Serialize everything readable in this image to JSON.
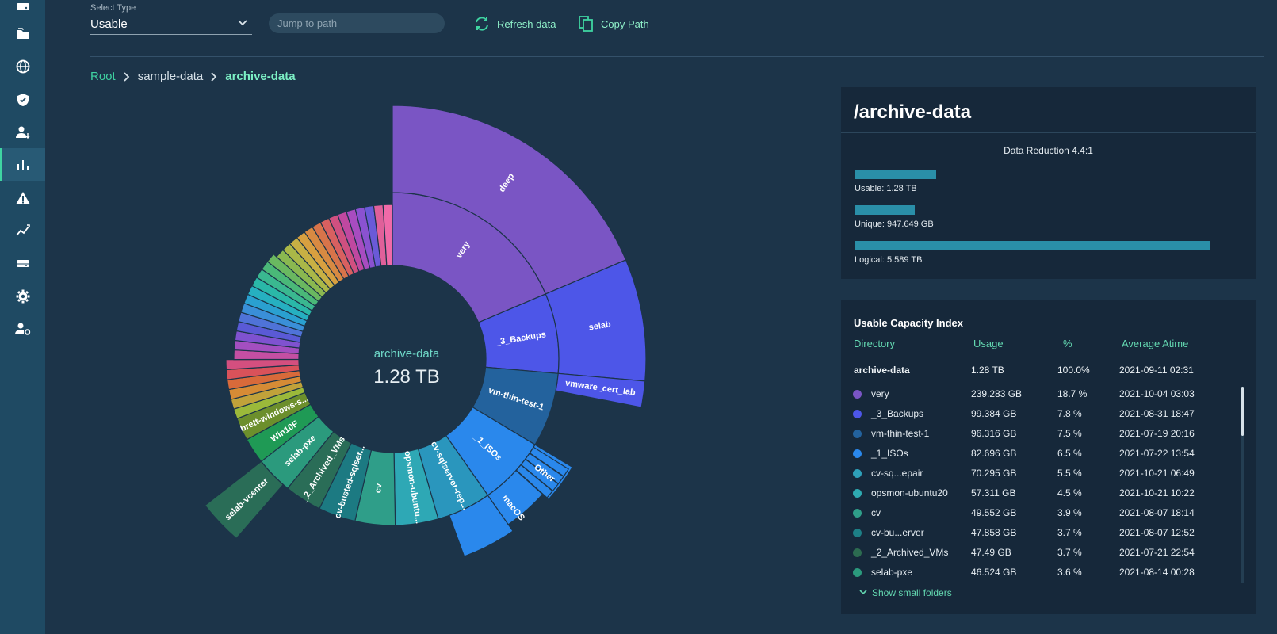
{
  "sidebar": {
    "items": [
      {
        "icon": "storage-icon"
      },
      {
        "icon": "folder-icon"
      },
      {
        "icon": "globe-icon"
      },
      {
        "icon": "shield-icon"
      },
      {
        "icon": "users-icon"
      },
      {
        "icon": "bar-chart-icon",
        "active": true
      },
      {
        "icon": "warning-icon"
      },
      {
        "icon": "trend-icon"
      },
      {
        "icon": "drive-icon"
      },
      {
        "icon": "gear-icon"
      },
      {
        "icon": "user-settings-icon"
      }
    ]
  },
  "toolbar": {
    "select_label": "Select Type",
    "select_value": "Usable",
    "path_placeholder": "Jump to path",
    "refresh_label": "Refresh data",
    "copy_label": "Copy Path"
  },
  "breadcrumb": {
    "items": [
      "Root",
      "sample-data",
      "archive-data"
    ]
  },
  "sunburst": {
    "center_name": "archive-data",
    "center_value": "1.28 TB",
    "colors": {
      "purple": "#7a55c4",
      "blue_violet": "#4d56e8",
      "dark_blue": "#23629d",
      "bright_blue": "#2a88ec",
      "teal": "#2ea0b9",
      "green_teal": "#2f9e89",
      "green": "#1f9a55"
    },
    "labels": {
      "deep": "deep",
      "very": "very",
      "selab": "selab",
      "backups": "_3_Backups",
      "vmware": "vmware_cert_lab",
      "vmthin": "vm-thin-test-1",
      "isos": "_1_ISOs",
      "macos": "macOS",
      "other": "Other",
      "cvsql": "cv-sqlserver-rep...",
      "opsmon": "opsmon-ubuntu...",
      "cv": "cv",
      "cvbusted": "cv-busted-sqlser...",
      "archived": "_2_Archived_VMs",
      "selabpxe": "selab-pxe",
      "win10f": "Win10F",
      "brett": "brett-windows-s...",
      "vcenter": "selab-vcenter"
    }
  },
  "summary": {
    "title": "/archive-data",
    "data_reduction": "Data Reduction 4.4:1",
    "bar_color": "#2a8fa8",
    "bars": [
      {
        "label": "Usable: 1.28 TB",
        "fraction": 0.229
      },
      {
        "label": "Unique: 947.649 GB",
        "fraction": 0.17
      },
      {
        "label": "Logical: 5.589 TB",
        "fraction": 1.0
      }
    ]
  },
  "capacity_index": {
    "title": "Usable Capacity Index",
    "columns": [
      "Directory",
      "Usage",
      "%",
      "Average Atime"
    ],
    "total": {
      "name": "archive-data",
      "usage": "1.28 TB",
      "pct": "100.0%",
      "atime": "2021-09-11 02:31"
    },
    "rows": [
      {
        "color": "#7a55c4",
        "name": "very",
        "usage": "239.283 GB",
        "pct": "18.7 %",
        "atime": "2021-10-04 03:03"
      },
      {
        "color": "#4d56e8",
        "name": "_3_Backups",
        "usage": "99.384 GB",
        "pct": "7.8 %",
        "atime": "2021-08-31 18:47"
      },
      {
        "color": "#23629d",
        "name": "vm-thin-test-1",
        "usage": "96.316 GB",
        "pct": "7.5 %",
        "atime": "2021-07-19 20:16"
      },
      {
        "color": "#2a88ec",
        "name": "_1_ISOs",
        "usage": "82.696 GB",
        "pct": "6.5 %",
        "atime": "2021-07-22 13:54"
      },
      {
        "color": "#2ea0b9",
        "name": "cv-sq...epair",
        "usage": "70.295 GB",
        "pct": "5.5 %",
        "atime": "2021-10-21 06:49"
      },
      {
        "color": "#2eaab1",
        "name": "opsmon-ubuntu20",
        "usage": "57.311 GB",
        "pct": "4.5 %",
        "atime": "2021-10-21 10:22"
      },
      {
        "color": "#2f9e89",
        "name": "cv",
        "usage": "49.552 GB",
        "pct": "3.9 %",
        "atime": "2021-08-07 18:14"
      },
      {
        "color": "#1d7f86",
        "name": "cv-bu...erver",
        "usage": "47.858 GB",
        "pct": "3.7 %",
        "atime": "2021-08-07 12:52"
      },
      {
        "color": "#2c6b50",
        "name": "_2_Archived_VMs",
        "usage": "47.49 GB",
        "pct": "3.7 %",
        "atime": "2021-07-21 22:54"
      },
      {
        "color": "#2b9a7d",
        "name": "selab-pxe",
        "usage": "46.524 GB",
        "pct": "3.6 %",
        "atime": "2021-08-14 00:28"
      }
    ],
    "show_small": "Show small folders"
  }
}
